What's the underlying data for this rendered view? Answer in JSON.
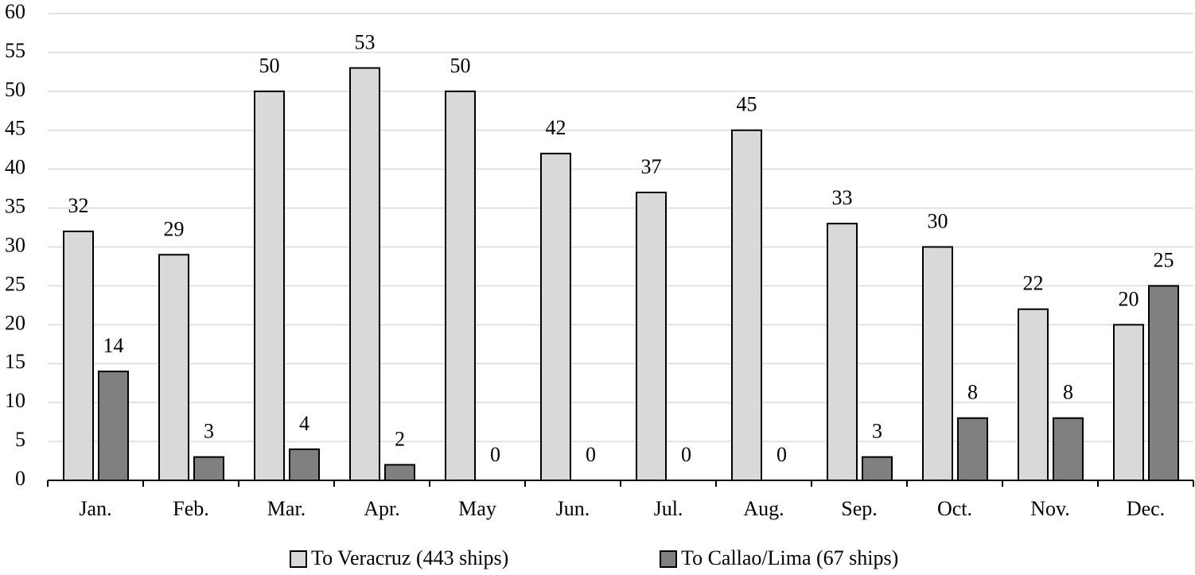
{
  "chart_data": {
    "type": "bar",
    "categories": [
      "Jan.",
      "Feb.",
      "Mar.",
      "Apr.",
      "May",
      "Jun.",
      "Jul.",
      "Aug.",
      "Sep.",
      "Oct.",
      "Nov.",
      "Dec."
    ],
    "series": [
      {
        "name": "To Veracruz (443 ships)",
        "color": "#d9d9d9",
        "values": [
          32,
          29,
          50,
          53,
          50,
          42,
          37,
          45,
          33,
          30,
          22,
          20
        ]
      },
      {
        "name": "To Callao/Lima (67 ships)",
        "color": "#808080",
        "values": [
          14,
          3,
          4,
          2,
          0,
          0,
          0,
          0,
          3,
          8,
          8,
          25
        ]
      }
    ],
    "ylim": [
      0,
      60
    ],
    "yticks": [
      0,
      5,
      10,
      15,
      20,
      25,
      30,
      35,
      40,
      45,
      50,
      55,
      60
    ],
    "grid": true,
    "legend": "bottom"
  }
}
